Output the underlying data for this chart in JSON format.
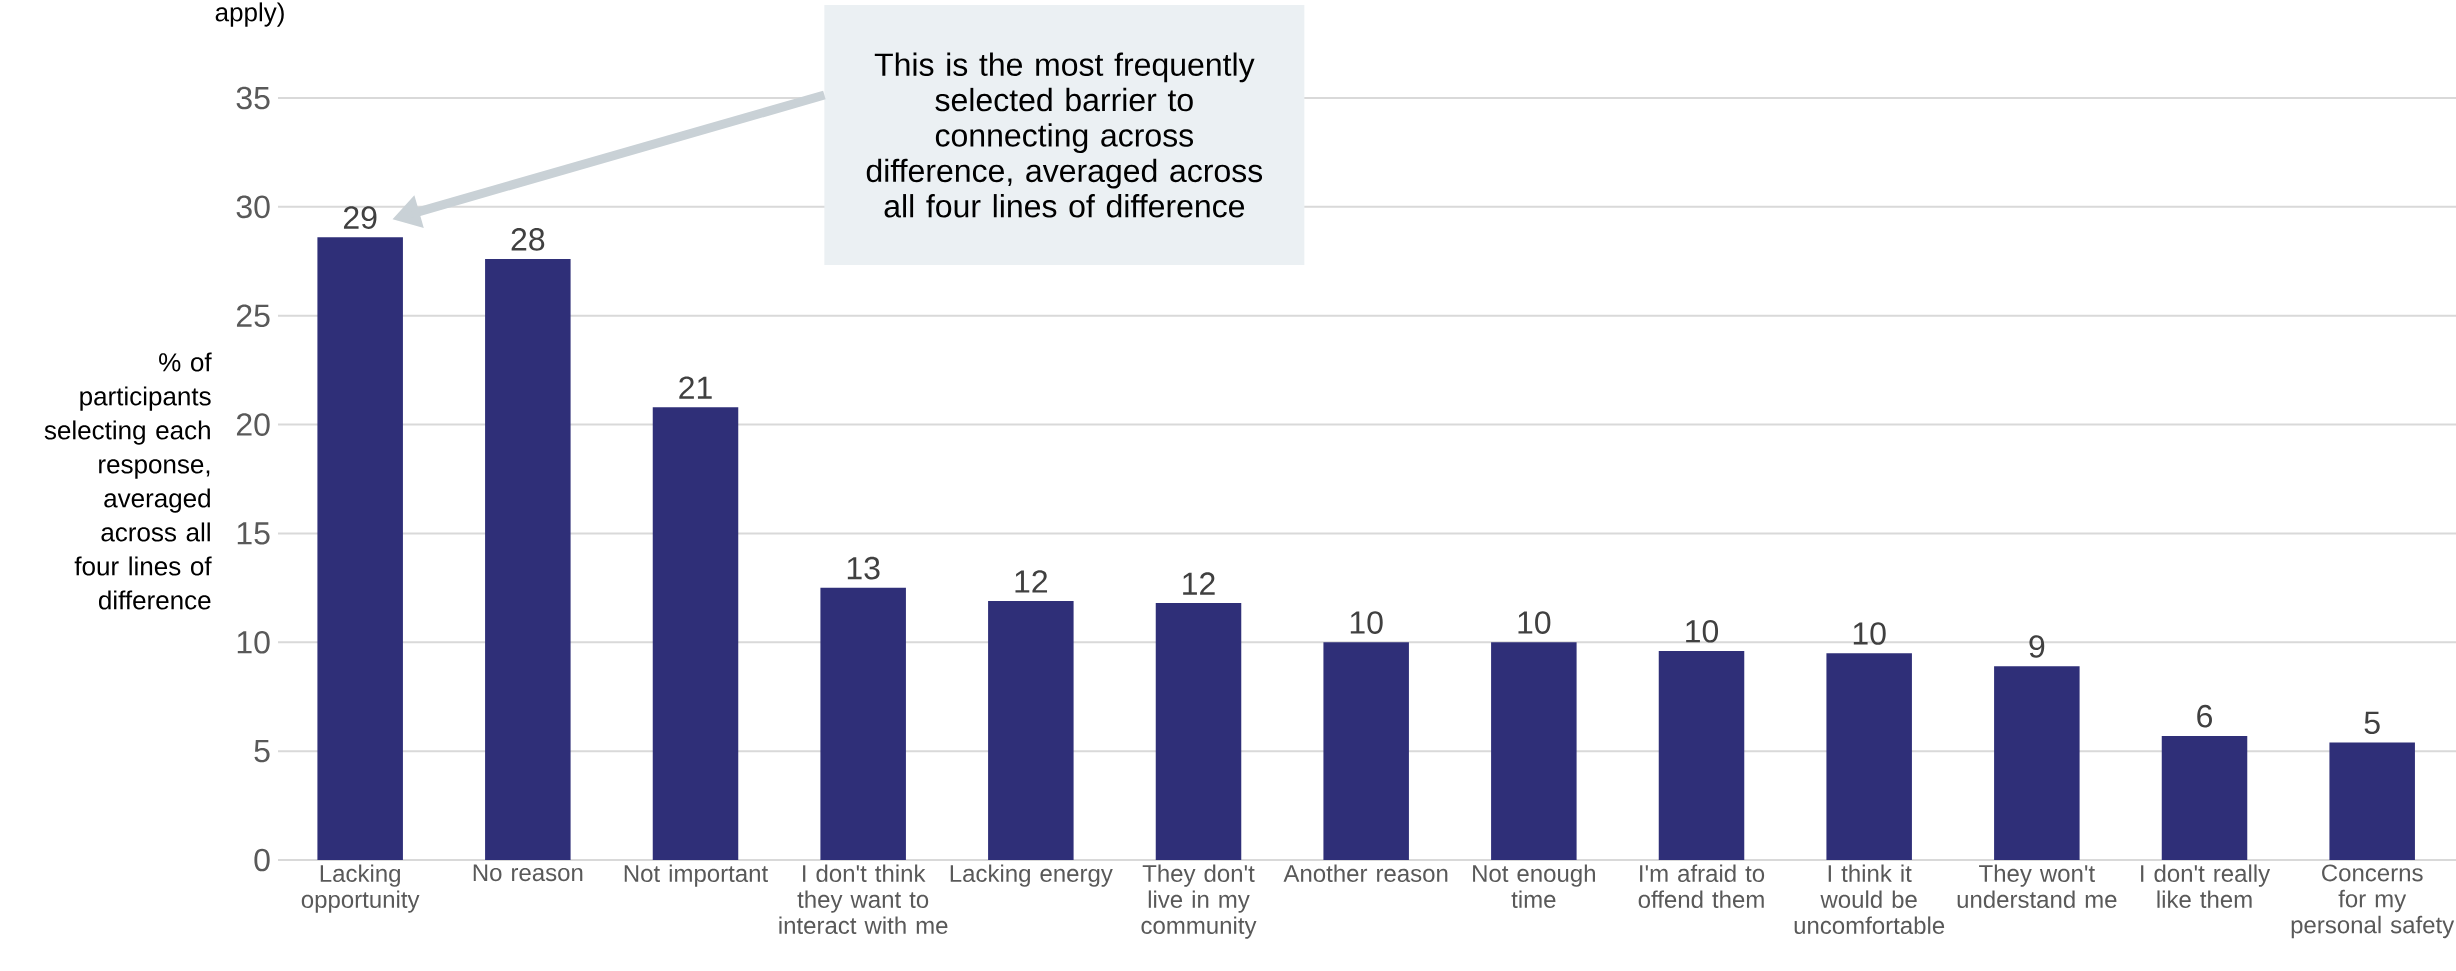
{
  "chart_data": {
    "type": "bar",
    "categories": [
      "Lacking opportunity",
      "No reason",
      "Not important",
      "I don't think they want to interact with me",
      "Lacking energy",
      "They don't live in my community",
      "Another reason",
      "Not enough time",
      "I'm afraid to offend them",
      "I think it would be uncomfortable",
      "They won't understand me",
      "I don't really like them",
      "Concerns for my personal safety"
    ],
    "values": [
      28.6,
      27.6,
      20.8,
      12.5,
      11.9,
      11.8,
      10.0,
      10.0,
      9.6,
      9.5,
      8.9,
      5.7,
      5.4
    ],
    "value_labels": [
      "29",
      "28",
      "21",
      "13",
      "12",
      "12",
      "10",
      "10",
      "10",
      "10",
      "9",
      "6",
      "5"
    ],
    "color": "#2f2f78",
    "ylabel": "% of participants selecting each response, averaged across all four lines of difference",
    "ylim": [
      0,
      35
    ],
    "yticks": [
      0,
      5,
      10,
      15,
      20,
      25,
      30,
      35
    ],
    "grid": "y",
    "annotations": [
      "apply)",
      "This is the most frequently selected barrier to connecting across difference, averaged across all four lines of difference"
    ]
  }
}
